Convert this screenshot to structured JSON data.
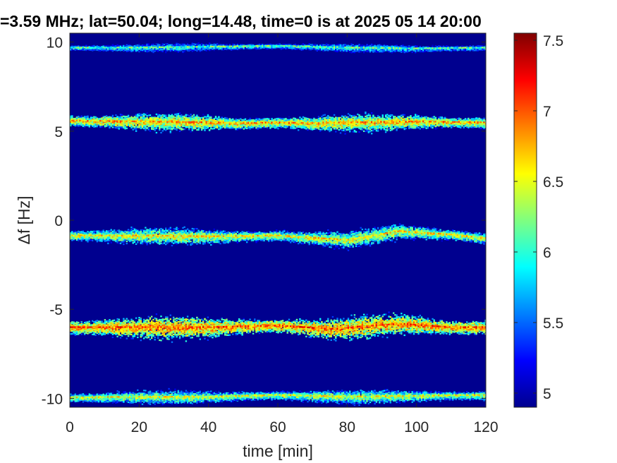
{
  "chart_data": {
    "type": "heatmap",
    "title": "=3.59 MHz;  lat=50.04; long=14.48, time=0 is at 2025 05 14 20:00",
    "xlabel": "time [min]",
    "ylabel": "Δf [Hz]",
    "xlim": [
      0,
      120
    ],
    "ylim": [
      -10.5,
      10.5
    ],
    "x_ticks": [
      0,
      20,
      40,
      60,
      80,
      100,
      120
    ],
    "x_tick_labels": [
      "0",
      "20",
      "40",
      "60",
      "80",
      "100",
      "120"
    ],
    "y_ticks": [
      10,
      5,
      0,
      -5,
      -10
    ],
    "y_tick_labels": [
      "10",
      "5",
      "0",
      "-5",
      "-10"
    ],
    "colorbar": {
      "colormap": "jet",
      "clim": [
        4.9,
        7.55
      ],
      "ticks": [
        7.5,
        7,
        6.5,
        6,
        5.5,
        5
      ],
      "tick_labels": [
        "7.5",
        "7",
        "6.5",
        "6",
        "5.5",
        "5"
      ]
    },
    "background_color": "#00008f",
    "bands": [
      {
        "center_freq": 9.7,
        "points": [
          [
            0,
            9.7
          ],
          [
            20,
            9.7
          ],
          [
            40,
            9.75
          ],
          [
            60,
            9.8
          ],
          [
            80,
            9.7
          ],
          [
            100,
            9.65
          ],
          [
            120,
            9.7
          ]
        ],
        "width": 0.25,
        "intensity": 5.9
      },
      {
        "center_freq": 5.55,
        "points": [
          [
            0,
            5.6
          ],
          [
            20,
            5.55
          ],
          [
            40,
            5.5
          ],
          [
            50,
            5.45
          ],
          [
            60,
            5.5
          ],
          [
            70,
            5.45
          ],
          [
            80,
            5.5
          ],
          [
            100,
            5.55
          ],
          [
            120,
            5.5
          ]
        ],
        "width": 0.5,
        "intensity": 6.6
      },
      {
        "center_freq": -0.85,
        "points": [
          [
            0,
            -0.85
          ],
          [
            20,
            -0.85
          ],
          [
            40,
            -0.9
          ],
          [
            60,
            -0.85
          ],
          [
            80,
            -1.1
          ],
          [
            95,
            -0.6
          ],
          [
            110,
            -0.8
          ],
          [
            120,
            -1.0
          ]
        ],
        "width": 0.5,
        "intensity": 6.4
      },
      {
        "center_freq": -6.0,
        "points": [
          [
            0,
            -6.0
          ],
          [
            20,
            -6.0
          ],
          [
            40,
            -6.0
          ],
          [
            60,
            -5.9
          ],
          [
            75,
            -6.1
          ],
          [
            95,
            -5.8
          ],
          [
            110,
            -6.0
          ],
          [
            120,
            -6.0
          ]
        ],
        "width": 0.65,
        "intensity": 6.8
      },
      {
        "center_freq": -9.9,
        "points": [
          [
            0,
            -9.95
          ],
          [
            20,
            -9.9
          ],
          [
            40,
            -9.9
          ],
          [
            60,
            -9.8
          ],
          [
            80,
            -9.9
          ],
          [
            100,
            -9.85
          ],
          [
            120,
            -9.8
          ]
        ],
        "width": 0.4,
        "intensity": 6.3
      }
    ]
  }
}
